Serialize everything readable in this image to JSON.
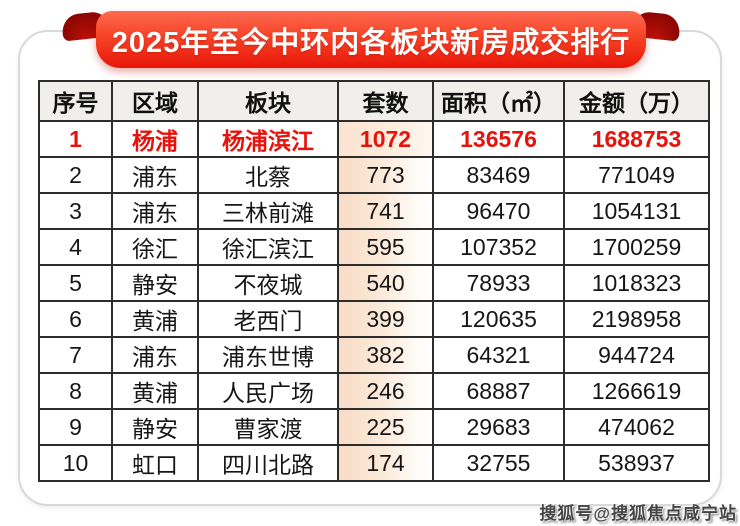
{
  "banner": {
    "title": "2025年至今中环内各板块新房成交排行"
  },
  "chart_data": {
    "type": "table",
    "title": "2025年至今中环内各板块新房成交排行",
    "columns": [
      "序号",
      "区域",
      "板块",
      "套数",
      "面积（㎡）",
      "金额（万）"
    ],
    "rows": [
      [
        "1",
        "杨浦",
        "杨浦滨江",
        "1072",
        "136576",
        "1688753"
      ],
      [
        "2",
        "浦东",
        "北蔡",
        "773",
        "83469",
        "771049"
      ],
      [
        "3",
        "浦东",
        "三林前滩",
        "741",
        "96470",
        "1054131"
      ],
      [
        "4",
        "徐汇",
        "徐汇滨江",
        "595",
        "107352",
        "1700259"
      ],
      [
        "5",
        "静安",
        "不夜城",
        "540",
        "78933",
        "1018323"
      ],
      [
        "6",
        "黄浦",
        "老西门",
        "399",
        "120635",
        "2198958"
      ],
      [
        "7",
        "浦东",
        "浦东世博",
        "382",
        "64321",
        "944724"
      ],
      [
        "8",
        "黄浦",
        "人民广场",
        "246",
        "68887",
        "1266619"
      ],
      [
        "9",
        "静安",
        "曹家渡",
        "225",
        "29683",
        "474062"
      ],
      [
        "10",
        "虹口",
        "四川北路",
        "174",
        "32755",
        "538937"
      ]
    ],
    "highlight_row": 0,
    "units_column_index": 3
  },
  "watermark": {
    "text": "搜狐号@搜狐焦点咸宁站"
  },
  "colors": {
    "ribbon_top": "#fc6a4f",
    "ribbon_bottom": "#e81607",
    "curl": "#8e0602",
    "table_border": "#2d2d2d",
    "header_bg": "#f0efec",
    "units_tint": "#f8dcc6",
    "highlight_text": "#e8120c"
  }
}
